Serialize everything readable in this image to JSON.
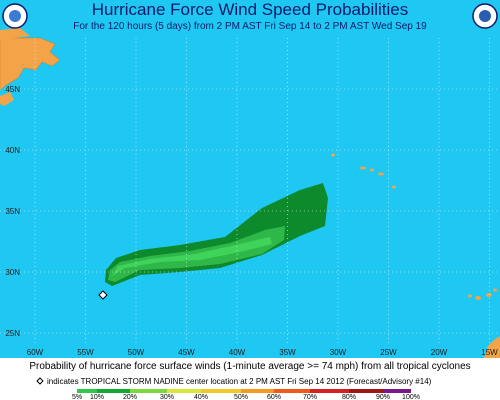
{
  "header": {
    "title": "Hurricane Force Wind Speed Probabilities",
    "subtitle": "For the 120 hours (5 days) from 2 PM AST Fri Sep 14 to 2 PM AST Wed Sep 19"
  },
  "map": {
    "lat_labels": [
      "45N",
      "40N",
      "35N",
      "30N",
      "25N"
    ],
    "lon_labels": [
      "60W",
      "55W",
      "50W",
      "45W",
      "40W",
      "35W",
      "30W",
      "25W",
      "20W",
      "15W"
    ]
  },
  "footer": {
    "description": "Probability of hurricane force surface winds (1-minute average >= 74 mph) from all tropical cyclones",
    "marker_note": "indicates TROPICAL STORM NADINE center location at 2 PM AST Fri Sep 14 2012 (Forecast/Advisory #14)"
  },
  "legend": {
    "labels": [
      "5%",
      "10%",
      "20%",
      "30%",
      "40%",
      "50%",
      "60%",
      "70%",
      "80%",
      "90%",
      "100%"
    ],
    "colors": [
      "#2ec94c",
      "#12a832",
      "#7fd83a",
      "#d8e83a",
      "#f2c72a",
      "#f59a1e",
      "#ef5a1c",
      "#d42020",
      "#a01414",
      "#7a1a8a"
    ]
  }
}
